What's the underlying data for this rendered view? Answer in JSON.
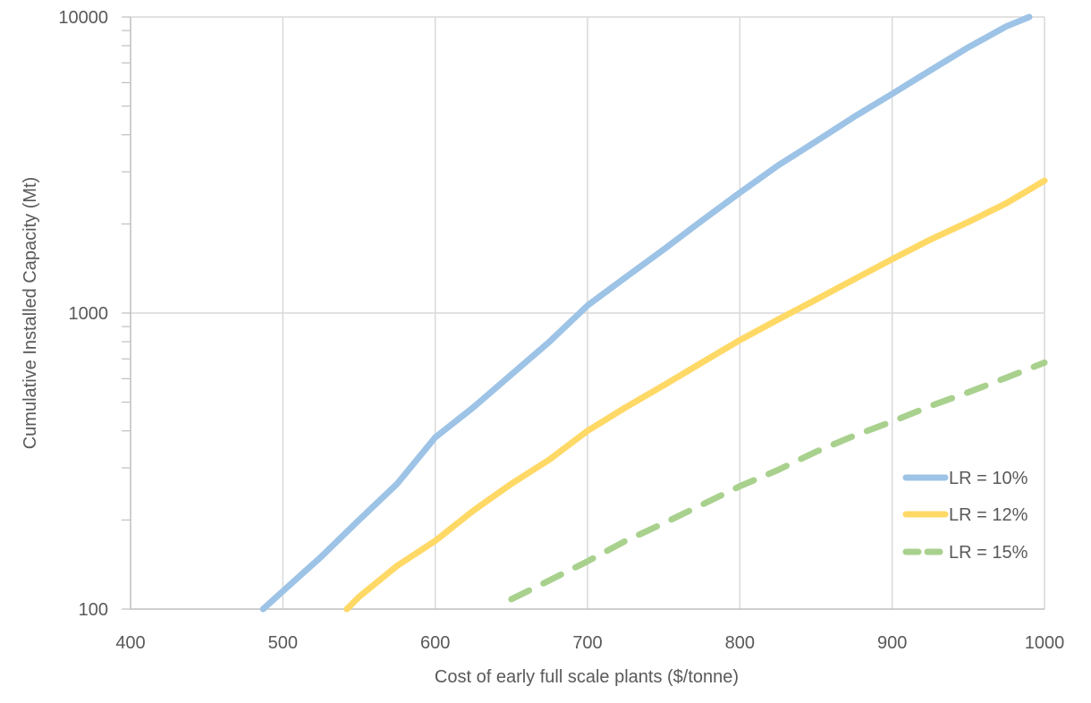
{
  "chart_data": {
    "type": "line",
    "title": "",
    "xlabel": "Cost of early full scale plants ($/tonne)",
    "ylabel": "Cumulative Installed Capacity (Mt)",
    "xlim": [
      400,
      1000
    ],
    "ylim": [
      100,
      10000
    ],
    "y_scale": "log",
    "x_ticks": [
      "400",
      "500",
      "600",
      "700",
      "800",
      "900",
      "1000"
    ],
    "y_ticks": [
      "100",
      "1000",
      "10000"
    ],
    "grid": true,
    "legend_position": "right",
    "series": [
      {
        "name": "LR = 10%",
        "color": "#9dc3e6",
        "style": "solid",
        "x": [
          487,
          500,
          525,
          550,
          575,
          600,
          625,
          650,
          675,
          700,
          725,
          750,
          775,
          800,
          825,
          850,
          875,
          900,
          925,
          950,
          975,
          990
        ],
        "y": [
          100,
          115,
          150,
          200,
          265,
          380,
          480,
          620,
          800,
          1060,
          1320,
          1640,
          2050,
          2550,
          3150,
          3800,
          4600,
          5500,
          6600,
          7900,
          9300,
          10000
        ]
      },
      {
        "name": "LR = 12%",
        "color": "#ffd966",
        "style": "solid",
        "x": [
          542,
          550,
          575,
          600,
          625,
          650,
          675,
          700,
          725,
          750,
          775,
          800,
          825,
          850,
          875,
          900,
          925,
          950,
          975,
          1000
        ],
        "y": [
          100,
          110,
          140,
          170,
          215,
          265,
          320,
          400,
          480,
          570,
          680,
          810,
          950,
          1110,
          1300,
          1520,
          1770,
          2030,
          2350,
          2800
        ]
      },
      {
        "name": "LR = 15%",
        "color": "#a9d18e",
        "style": "dashed",
        "x": [
          650,
          675,
          700,
          725,
          750,
          775,
          800,
          825,
          850,
          875,
          900,
          925,
          950,
          975,
          1000
        ],
        "y": [
          108,
          125,
          145,
          170,
          195,
          225,
          260,
          295,
          340,
          385,
          430,
          485,
          540,
          605,
          680
        ]
      }
    ]
  }
}
